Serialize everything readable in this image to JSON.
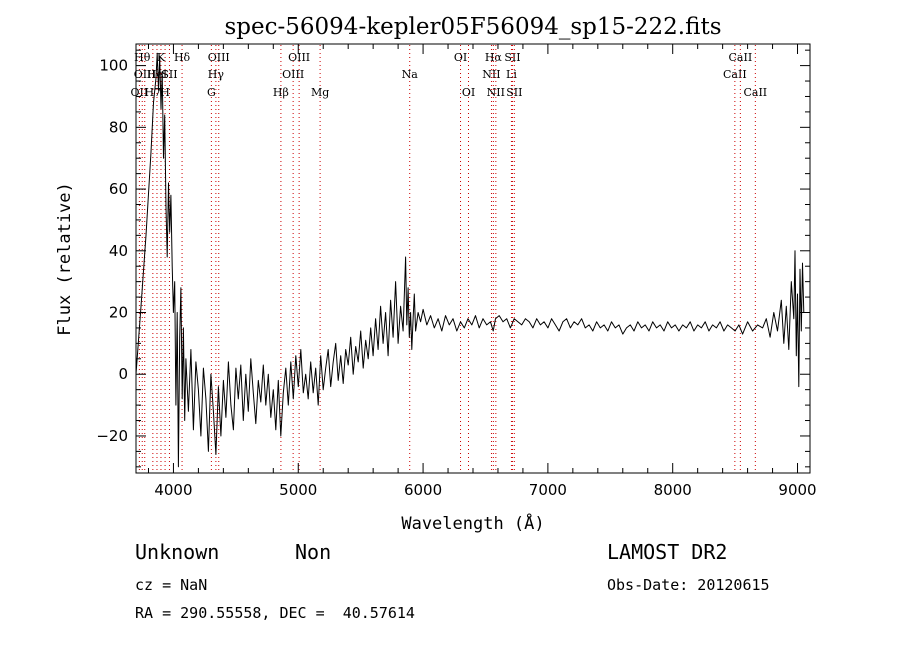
{
  "chart_data": {
    "type": "line",
    "title": "spec-56094-kepler05F56094_sp15-222.fits",
    "xlabel": "Wavelength (Å)",
    "ylabel": "Flux (relative)",
    "xlim": [
      3700,
      9100
    ],
    "ylim": [
      -32,
      107
    ],
    "xticks": [
      4000,
      5000,
      6000,
      7000,
      8000,
      9000
    ],
    "yticks": [
      -20,
      0,
      20,
      40,
      60,
      80,
      100
    ],
    "grid": false,
    "series": [
      {
        "color": "#000000",
        "points": [
          [
            3700,
            0
          ],
          [
            3740,
            22
          ],
          [
            3780,
            45
          ],
          [
            3820,
            72
          ],
          [
            3840,
            88
          ],
          [
            3860,
            96
          ],
          [
            3870,
            104
          ],
          [
            3880,
            92
          ],
          [
            3890,
            103
          ],
          [
            3900,
            86
          ],
          [
            3910,
            98
          ],
          [
            3920,
            70
          ],
          [
            3930,
            84
          ],
          [
            3940,
            54
          ],
          [
            3950,
            38
          ],
          [
            3960,
            62
          ],
          [
            3970,
            46
          ],
          [
            3980,
            58
          ],
          [
            3990,
            35
          ],
          [
            4000,
            20
          ],
          [
            4010,
            30
          ],
          [
            4020,
            -10
          ],
          [
            4030,
            20
          ],
          [
            4040,
            -30
          ],
          [
            4050,
            12
          ],
          [
            4060,
            28
          ],
          [
            4070,
            -8
          ],
          [
            4080,
            15
          ],
          [
            4090,
            -15
          ],
          [
            4100,
            5
          ],
          [
            4120,
            -12
          ],
          [
            4140,
            8
          ],
          [
            4160,
            -18
          ],
          [
            4180,
            4
          ],
          [
            4200,
            -5
          ],
          [
            4220,
            -20
          ],
          [
            4240,
            2
          ],
          [
            4260,
            -8
          ],
          [
            4280,
            -25
          ],
          [
            4300,
            0
          ],
          [
            4320,
            -12
          ],
          [
            4340,
            -26
          ],
          [
            4360,
            -4
          ],
          [
            4380,
            -20
          ],
          [
            4400,
            -2
          ],
          [
            4420,
            -14
          ],
          [
            4440,
            4
          ],
          [
            4460,
            -10
          ],
          [
            4480,
            -18
          ],
          [
            4500,
            2
          ],
          [
            4520,
            -8
          ],
          [
            4540,
            3
          ],
          [
            4560,
            -15
          ],
          [
            4580,
            0
          ],
          [
            4600,
            -12
          ],
          [
            4620,
            5
          ],
          [
            4640,
            -6
          ],
          [
            4660,
            -16
          ],
          [
            4680,
            -2
          ],
          [
            4700,
            -9
          ],
          [
            4720,
            3
          ],
          [
            4740,
            -10
          ],
          [
            4760,
            0
          ],
          [
            4780,
            -14
          ],
          [
            4800,
            -5
          ],
          [
            4820,
            -18
          ],
          [
            4840,
            -2
          ],
          [
            4860,
            -20
          ],
          [
            4880,
            -6
          ],
          [
            4900,
            2
          ],
          [
            4920,
            -10
          ],
          [
            4940,
            4
          ],
          [
            4960,
            -8
          ],
          [
            4980,
            6
          ],
          [
            5000,
            -4
          ],
          [
            5020,
            8
          ],
          [
            5040,
            -6
          ],
          [
            5060,
            0
          ],
          [
            5080,
            -8
          ],
          [
            5100,
            4
          ],
          [
            5120,
            -6
          ],
          [
            5140,
            2
          ],
          [
            5160,
            -10
          ],
          [
            5180,
            6
          ],
          [
            5200,
            -5
          ],
          [
            5220,
            2
          ],
          [
            5240,
            8
          ],
          [
            5260,
            -4
          ],
          [
            5280,
            4
          ],
          [
            5300,
            10
          ],
          [
            5320,
            -2
          ],
          [
            5340,
            6
          ],
          [
            5360,
            -3
          ],
          [
            5380,
            8
          ],
          [
            5400,
            3
          ],
          [
            5420,
            12
          ],
          [
            5440,
            0
          ],
          [
            5460,
            9
          ],
          [
            5480,
            4
          ],
          [
            5500,
            14
          ],
          [
            5520,
            2
          ],
          [
            5540,
            11
          ],
          [
            5560,
            5
          ],
          [
            5580,
            15
          ],
          [
            5600,
            6
          ],
          [
            5620,
            18
          ],
          [
            5640,
            8
          ],
          [
            5660,
            22
          ],
          [
            5680,
            10
          ],
          [
            5700,
            20
          ],
          [
            5720,
            6
          ],
          [
            5740,
            24
          ],
          [
            5760,
            12
          ],
          [
            5780,
            30
          ],
          [
            5800,
            10
          ],
          [
            5820,
            22
          ],
          [
            5840,
            14
          ],
          [
            5860,
            38
          ],
          [
            5870,
            16
          ],
          [
            5880,
            28
          ],
          [
            5890,
            12
          ],
          [
            5900,
            20
          ],
          [
            5910,
            8
          ],
          [
            5920,
            18
          ],
          [
            5930,
            26
          ],
          [
            5940,
            14
          ],
          [
            5960,
            20
          ],
          [
            5980,
            17
          ],
          [
            6000,
            21
          ],
          [
            6030,
            16
          ],
          [
            6060,
            19
          ],
          [
            6090,
            15
          ],
          [
            6120,
            18
          ],
          [
            6150,
            14
          ],
          [
            6180,
            19
          ],
          [
            6210,
            16
          ],
          [
            6240,
            18
          ],
          [
            6270,
            14
          ],
          [
            6300,
            17
          ],
          [
            6330,
            15
          ],
          [
            6360,
            18
          ],
          [
            6390,
            16
          ],
          [
            6420,
            19
          ],
          [
            6450,
            15
          ],
          [
            6480,
            18
          ],
          [
            6510,
            16
          ],
          [
            6540,
            17
          ],
          [
            6562,
            14
          ],
          [
            6580,
            18
          ],
          [
            6610,
            19
          ],
          [
            6640,
            17
          ],
          [
            6670,
            18
          ],
          [
            6700,
            15
          ],
          [
            6730,
            18
          ],
          [
            6760,
            17
          ],
          [
            6790,
            16
          ],
          [
            6820,
            18
          ],
          [
            6850,
            17
          ],
          [
            6880,
            15
          ],
          [
            6910,
            18
          ],
          [
            6940,
            16
          ],
          [
            6970,
            17
          ],
          [
            7000,
            15
          ],
          [
            7030,
            18
          ],
          [
            7060,
            16
          ],
          [
            7090,
            14
          ],
          [
            7120,
            17
          ],
          [
            7150,
            18
          ],
          [
            7180,
            15
          ],
          [
            7210,
            17
          ],
          [
            7240,
            16
          ],
          [
            7270,
            18
          ],
          [
            7300,
            15
          ],
          [
            7330,
            16
          ],
          [
            7360,
            14
          ],
          [
            7390,
            17
          ],
          [
            7420,
            15
          ],
          [
            7450,
            16
          ],
          [
            7480,
            14
          ],
          [
            7510,
            17
          ],
          [
            7540,
            15
          ],
          [
            7570,
            16
          ],
          [
            7600,
            13
          ],
          [
            7630,
            15
          ],
          [
            7660,
            16
          ],
          [
            7690,
            14
          ],
          [
            7720,
            17
          ],
          [
            7750,
            15
          ],
          [
            7780,
            16
          ],
          [
            7810,
            14
          ],
          [
            7840,
            17
          ],
          [
            7870,
            15
          ],
          [
            7900,
            16
          ],
          [
            7930,
            14
          ],
          [
            7960,
            17
          ],
          [
            7990,
            15
          ],
          [
            8020,
            16
          ],
          [
            8050,
            14
          ],
          [
            8080,
            16
          ],
          [
            8110,
            15
          ],
          [
            8140,
            17
          ],
          [
            8170,
            14
          ],
          [
            8200,
            16
          ],
          [
            8230,
            15
          ],
          [
            8260,
            17
          ],
          [
            8290,
            14
          ],
          [
            8320,
            16
          ],
          [
            8350,
            15
          ],
          [
            8380,
            17
          ],
          [
            8410,
            14
          ],
          [
            8440,
            16
          ],
          [
            8470,
            15
          ],
          [
            8500,
            14
          ],
          [
            8530,
            16
          ],
          [
            8560,
            13
          ],
          [
            8600,
            17
          ],
          [
            8640,
            14
          ],
          [
            8680,
            16
          ],
          [
            8720,
            15
          ],
          [
            8750,
            18
          ],
          [
            8780,
            12
          ],
          [
            8810,
            20
          ],
          [
            8840,
            14
          ],
          [
            8870,
            24
          ],
          [
            8890,
            10
          ],
          [
            8910,
            22
          ],
          [
            8930,
            8
          ],
          [
            8950,
            30
          ],
          [
            8970,
            18
          ],
          [
            8980,
            40
          ],
          [
            8990,
            6
          ],
          [
            9000,
            26
          ],
          [
            9010,
            -4
          ],
          [
            9020,
            34
          ],
          [
            9030,
            14
          ],
          [
            9040,
            36
          ],
          [
            9050,
            20
          ]
        ]
      }
    ],
    "line_markers": [
      {
        "wavelength": 3727,
        "label": "OII",
        "row": 2
      },
      {
        "wavelength": 3750,
        "label": "Hθ",
        "row": 0
      },
      {
        "wavelength": 3770,
        "label": "OIII",
        "row": 1
      },
      {
        "wavelength": 3835,
        "label": "H7",
        "row": 2
      },
      {
        "wavelength": 3868,
        "label": "HeI",
        "row": 1
      },
      {
        "wavelength": 3900,
        "label": "K",
        "row": 0
      },
      {
        "wavelength": 3933,
        "label": "H",
        "row": 2
      },
      {
        "wavelength": 3968,
        "label": "SII",
        "row": 1
      },
      {
        "wavelength": 4069,
        "label": "Hδ",
        "row": 0
      },
      {
        "wavelength": 4304,
        "label": "G",
        "row": 2
      },
      {
        "wavelength": 4340,
        "label": "Hγ",
        "row": 1
      },
      {
        "wavelength": 4363,
        "label": "OIII",
        "row": 0
      },
      {
        "wavelength": 4861,
        "label": "Hβ",
        "row": 2
      },
      {
        "wavelength": 4959,
        "label": "OIII",
        "row": 1
      },
      {
        "wavelength": 5007,
        "label": "OIII",
        "row": 0
      },
      {
        "wavelength": 5175,
        "label": "Mg",
        "row": 2
      },
      {
        "wavelength": 5893,
        "label": "Na",
        "row": 1
      },
      {
        "wavelength": 6300,
        "label": "OI",
        "row": 0
      },
      {
        "wavelength": 6364,
        "label": "OI",
        "row": 2
      },
      {
        "wavelength": 6548,
        "label": "NII",
        "row": 1
      },
      {
        "wavelength": 6563,
        "label": "Hα",
        "row": 0
      },
      {
        "wavelength": 6583,
        "label": "NII",
        "row": 2
      },
      {
        "wavelength": 6708,
        "label": "Li",
        "row": 1
      },
      {
        "wavelength": 6716,
        "label": "SII",
        "row": 0
      },
      {
        "wavelength": 6731,
        "label": "SII",
        "row": 2
      },
      {
        "wavelength": 8498,
        "label": "CaII",
        "row": 1
      },
      {
        "wavelength": 8542,
        "label": "CaII",
        "row": 0
      },
      {
        "wavelength": 8662,
        "label": "CaII",
        "row": 2
      }
    ],
    "marker_color": "#cc0000"
  },
  "info": {
    "object_class": "Unknown",
    "subclass": "Non",
    "redshift": "cz = NaN",
    "coordinates": "RA = 290.55558, DEC =  40.57614",
    "survey": "LAMOST DR2",
    "obs_date": "Obs-Date: 20120615"
  }
}
